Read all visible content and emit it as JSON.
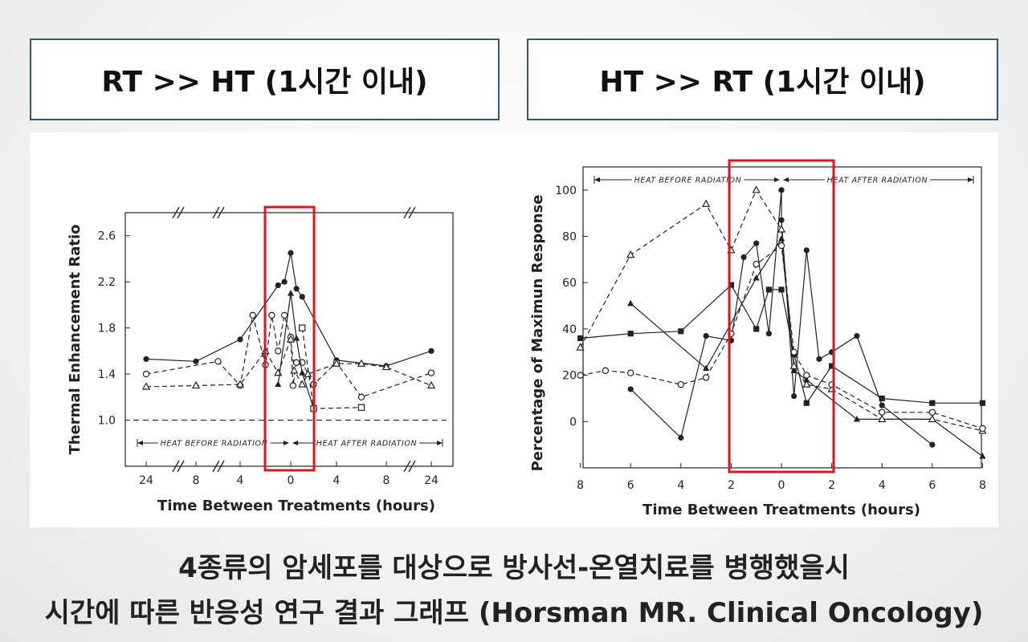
{
  "titles": {
    "left": "RT >> HT (1시간 이내)",
    "right": "HT >> RT (1시간 이내)"
  },
  "caption": {
    "line1": "4종류의 암세포를 대상으로 방사선-온열치료를 병행했을시",
    "line2": "시간에 따른 반응성 연구 결과 그래프 (Horsman MR. Clinical Oncology)"
  },
  "colors": {
    "highlight": "#e0141b",
    "title_border": "#2e5b73",
    "ink": "#222222"
  },
  "chart_data": [
    {
      "type": "line",
      "ylabel": "Thermal Enhancement Ratio",
      "xlabel": "Time Between Treatments (hours)",
      "x_ticks": [
        "24",
        "8",
        "4",
        "0",
        "4",
        "8",
        "24"
      ],
      "y_ticks": [
        "1.0",
        "1.4",
        "1.8",
        "2.2",
        "2.6"
      ],
      "ylim": [
        0.6,
        2.8
      ],
      "annotations": {
        "before": "HEAT BEFORE RADIATION",
        "after": "HEAT AFTER RADIATION"
      },
      "reference_line": 1.0,
      "highlight_x_range": [
        -1.2,
        1.2
      ],
      "series": [
        {
          "marker": "filled-circle",
          "dash": "solid",
          "points": [
            [
              -15,
              1.53
            ],
            [
              -8,
              1.51
            ],
            [
              -4,
              1.7
            ],
            [
              -1,
              2.17
            ],
            [
              -0.5,
              2.2
            ],
            [
              0,
              2.45
            ],
            [
              0.5,
              2.14
            ],
            [
              1,
              2.07
            ],
            [
              4,
              1.52
            ],
            [
              8,
              1.47
            ],
            [
              15,
              1.6
            ]
          ]
        },
        {
          "marker": "open-circle",
          "dash": "dashed",
          "points": [
            [
              -15,
              1.4
            ],
            [
              -6,
              1.51
            ],
            [
              -4,
              1.3
            ],
            [
              -3,
              1.91
            ],
            [
              -2,
              1.48
            ],
            [
              -1.5,
              1.91
            ],
            [
              -1,
              1.6
            ],
            [
              -0.5,
              1.91
            ],
            [
              0,
              1.72
            ],
            [
              0.2,
              1.3
            ],
            [
              0.5,
              1.5
            ],
            [
              1,
              1.5
            ],
            [
              2,
              1.31
            ],
            [
              4,
              1.5
            ],
            [
              6,
              1.2
            ],
            [
              15,
              1.41
            ]
          ]
        },
        {
          "marker": "open-triangle",
          "dash": "dashed",
          "points": [
            [
              -15,
              1.29
            ],
            [
              -8,
              1.3
            ],
            [
              -4,
              1.31
            ],
            [
              -2,
              1.6
            ],
            [
              -1,
              1.41
            ],
            [
              0,
              1.7
            ],
            [
              0.3,
              1.43
            ],
            [
              1,
              1.31
            ],
            [
              1.5,
              1.4
            ],
            [
              4,
              1.49
            ],
            [
              6,
              1.49
            ],
            [
              8,
              1.46
            ],
            [
              15,
              1.3
            ]
          ]
        },
        {
          "marker": "filled-triangle",
          "dash": "solid",
          "points": [
            [
              -1,
              1.31
            ],
            [
              0,
              2.1
            ],
            [
              0.5,
              1.71
            ],
            [
              1,
              1.41
            ],
            [
              2,
              1.1
            ]
          ]
        },
        {
          "marker": "open-square",
          "dash": "dashed",
          "points": [
            [
              1,
              1.8
            ],
            [
              2,
              1.1
            ],
            [
              6,
              1.11
            ]
          ]
        }
      ]
    },
    {
      "type": "line",
      "ylabel": "Percentage of Maximun Response",
      "xlabel": "Time Between Treatments (hours)",
      "x_ticks": [
        "8",
        "6",
        "4",
        "2",
        "0",
        "2",
        "4",
        "6",
        "8"
      ],
      "y_ticks": [
        "0",
        "20",
        "40",
        "60",
        "80",
        "100"
      ],
      "ylim": [
        -20,
        110
      ],
      "annotations": {
        "before": "HEAT BEFORE RADIATION",
        "after": "HEAT AFTER RADIATION"
      },
      "highlight_x_range": [
        -2.2,
        2.2
      ],
      "series": [
        {
          "marker": "filled-square",
          "dash": "solid",
          "points": [
            [
              -8,
              36
            ],
            [
              -6,
              38
            ],
            [
              -4,
              39
            ],
            [
              -2,
              59
            ],
            [
              -1,
              40
            ],
            [
              -0.5,
              57
            ],
            [
              0,
              57
            ],
            [
              0.5,
              29
            ],
            [
              1,
              8
            ],
            [
              2,
              24
            ],
            [
              4,
              10
            ],
            [
              6,
              8
            ],
            [
              8,
              8
            ]
          ]
        },
        {
          "marker": "filled-circle",
          "dash": "solid",
          "points": [
            [
              -6,
              14
            ],
            [
              -4,
              -7
            ],
            [
              -3,
              37
            ],
            [
              -2,
              35
            ],
            [
              -1.5,
              71
            ],
            [
              -1,
              77
            ],
            [
              -0.5,
              38
            ],
            [
              0,
              100
            ],
            [
              0,
              87
            ],
            [
              0.5,
              11
            ],
            [
              1,
              74
            ],
            [
              1.5,
              27
            ],
            [
              2,
              30
            ],
            [
              3,
              37
            ],
            [
              4,
              7
            ],
            [
              6,
              -10
            ]
          ]
        },
        {
          "marker": "filled-triangle",
          "dash": "solid",
          "points": [
            [
              -6,
              51
            ],
            [
              -3,
              23
            ],
            [
              -1,
              62
            ],
            [
              0,
              79
            ],
            [
              0.5,
              22
            ],
            [
              1,
              18
            ],
            [
              3,
              1
            ],
            [
              6,
              1
            ],
            [
              8,
              -15
            ]
          ]
        },
        {
          "marker": "open-triangle",
          "dash": "dashed",
          "points": [
            [
              -8,
              32
            ],
            [
              -6,
              72
            ],
            [
              -3,
              94
            ],
            [
              -2,
              74
            ],
            [
              -1,
              100
            ],
            [
              0,
              83
            ],
            [
              0.5,
              24
            ],
            [
              1,
              16
            ],
            [
              2,
              14
            ],
            [
              4,
              1
            ],
            [
              6,
              1
            ],
            [
              8,
              -4
            ]
          ]
        },
        {
          "marker": "open-circle",
          "dash": "dashed",
          "points": [
            [
              -8,
              20
            ],
            [
              -7,
              22
            ],
            [
              -6,
              21
            ],
            [
              -4,
              16
            ],
            [
              -3,
              19
            ],
            [
              -2,
              38
            ],
            [
              -1,
              68
            ],
            [
              0,
              76
            ],
            [
              0.5,
              30
            ],
            [
              1,
              20
            ],
            [
              2,
              16
            ],
            [
              4,
              4
            ],
            [
              6,
              4
            ],
            [
              8,
              -3
            ]
          ]
        }
      ]
    }
  ]
}
